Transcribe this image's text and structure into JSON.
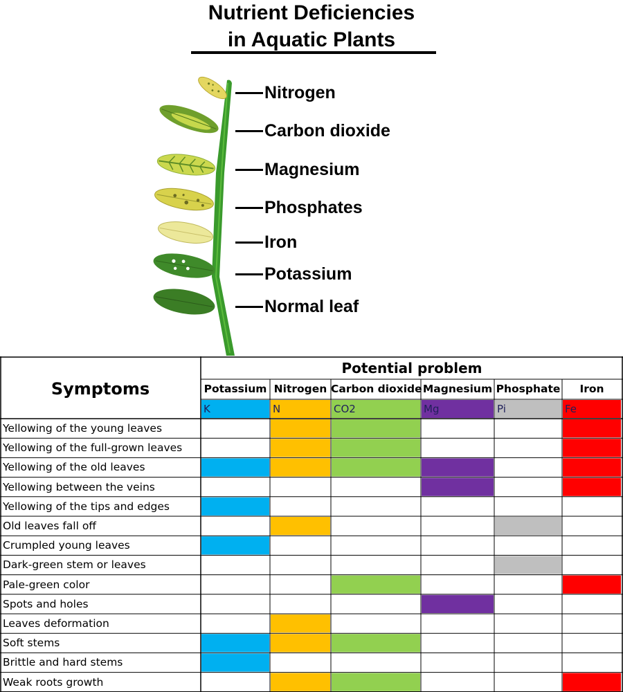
{
  "title": {
    "line1": "Nutrient Deficiencies",
    "line2": "in Aquatic Plants"
  },
  "plant_labels": [
    {
      "label": "Nitrogen",
      "leaf_color": "#e8dc5a"
    },
    {
      "label": "Carbon dioxide",
      "leaf_color": "#8fb83a"
    },
    {
      "label": "Magnesium",
      "leaf_color": "#c9d84a"
    },
    {
      "label": "Phosphates",
      "leaf_color": "#d9d24a"
    },
    {
      "label": "Iron",
      "leaf_color": "#ece79a"
    },
    {
      "label": "Potassium",
      "leaf_color": "#3f8a2a"
    },
    {
      "label": "Normal leaf",
      "leaf_color": "#3b7d25"
    }
  ],
  "table": {
    "symptoms_header": "Symptoms",
    "potential_problem_header": "Potential problem",
    "columns": [
      {
        "name": "Potassium",
        "code": "K",
        "color": "#00b0f0"
      },
      {
        "name": "Nitrogen",
        "code": "N",
        "color": "#ffc000"
      },
      {
        "name": "Carbon dioxide",
        "code": "CO2",
        "color": "#92d050"
      },
      {
        "name": "Magnesium",
        "code": "Mg",
        "color": "#7030a0"
      },
      {
        "name": "Phosphate",
        "code": "Pi",
        "color": "#bfbfbf"
      },
      {
        "name": "Iron",
        "code": "Fe",
        "color": "#ff0000"
      }
    ],
    "rows": [
      {
        "symptom": "Yellowing of the young leaves",
        "marks": [
          false,
          true,
          true,
          false,
          false,
          true
        ]
      },
      {
        "symptom": "Yellowing of the full-grown leaves",
        "marks": [
          false,
          true,
          true,
          false,
          false,
          true
        ]
      },
      {
        "symptom": "Yellowing of the old leaves",
        "marks": [
          true,
          true,
          true,
          true,
          false,
          true
        ]
      },
      {
        "symptom": "Yellowing between the veins",
        "marks": [
          false,
          false,
          false,
          true,
          false,
          true
        ]
      },
      {
        "symptom": "Yellowing of the tips and edges",
        "marks": [
          true,
          false,
          false,
          false,
          false,
          false
        ]
      },
      {
        "symptom": "Old leaves fall off",
        "marks": [
          false,
          true,
          false,
          false,
          true,
          false
        ]
      },
      {
        "symptom": "Crumpled young leaves",
        "marks": [
          true,
          false,
          false,
          false,
          false,
          false
        ]
      },
      {
        "symptom": "Dark-green stem or leaves",
        "marks": [
          false,
          false,
          false,
          false,
          true,
          false
        ]
      },
      {
        "symptom": "Pale-green color",
        "marks": [
          false,
          false,
          true,
          false,
          false,
          true
        ]
      },
      {
        "symptom": "Spots and holes",
        "marks": [
          false,
          false,
          false,
          true,
          false,
          false
        ]
      },
      {
        "symptom": "Leaves deformation",
        "marks": [
          false,
          true,
          false,
          false,
          false,
          false
        ]
      },
      {
        "symptom": "Soft stems",
        "marks": [
          true,
          true,
          true,
          false,
          false,
          false
        ]
      },
      {
        "symptom": "Brittle and hard stems",
        "marks": [
          true,
          false,
          false,
          false,
          false,
          false
        ]
      },
      {
        "symptom": "Weak roots growth",
        "marks": [
          false,
          true,
          true,
          false,
          false,
          true
        ]
      }
    ]
  }
}
